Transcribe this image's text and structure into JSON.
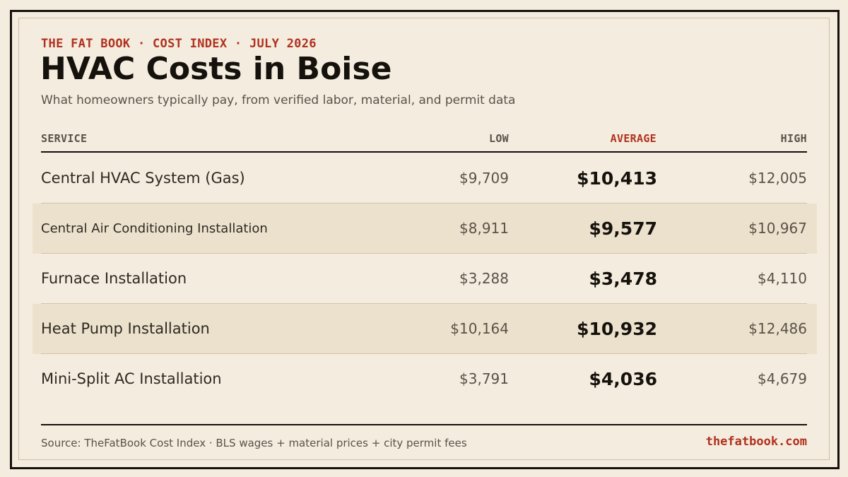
{
  "header": {
    "eyebrow": "THE FAT BOOK · COST INDEX · JULY 2026",
    "title": "HVAC Costs in Boise",
    "subtitle": "What homeowners typically pay, from verified labor, material, and permit data"
  },
  "table": {
    "columns": {
      "service": "SERVICE",
      "low": "LOW",
      "average": "AVERAGE",
      "high": "HIGH"
    },
    "rows": [
      {
        "service": "Central HVAC System (Gas)",
        "low": "$9,709",
        "average": "$10,413",
        "high": "$12,005"
      },
      {
        "service": "Central Air Conditioning Installation",
        "low": "$8,911",
        "average": "$9,577",
        "high": "$10,967"
      },
      {
        "service": "Furnace Installation",
        "low": "$3,288",
        "average": "$3,478",
        "high": "$4,110"
      },
      {
        "service": "Heat Pump Installation",
        "low": "$10,164",
        "average": "$10,932",
        "high": "$12,486"
      },
      {
        "service": "Mini-Split AC Installation",
        "low": "$3,791",
        "average": "$4,036",
        "high": "$4,679"
      }
    ]
  },
  "footer": {
    "source": "Source: TheFatBook Cost Index · BLS wages + material prices + city permit fees",
    "brand": "thefatbook.com"
  },
  "colors": {
    "background": "#f4ecde",
    "accent": "#b0311e",
    "ink": "#15110c",
    "row_shade": "#ece1cd"
  }
}
